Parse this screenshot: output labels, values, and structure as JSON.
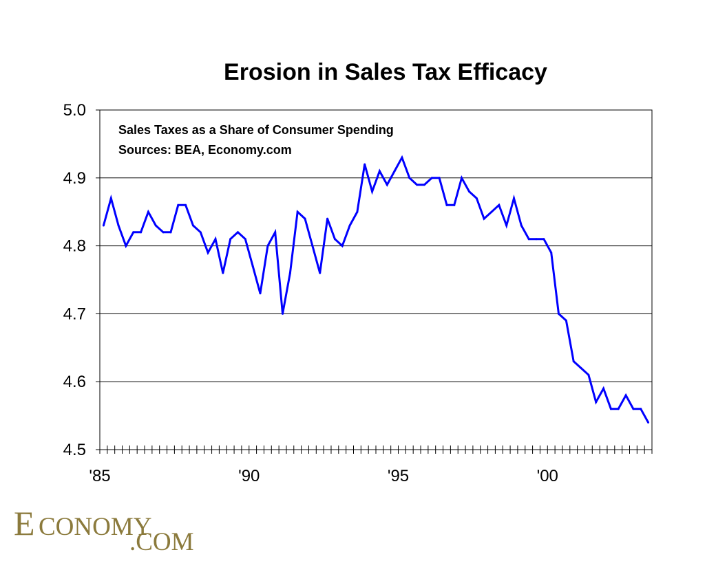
{
  "chart_data": {
    "type": "line",
    "title": "Erosion in Sales Tax Efficacy",
    "annotations": [
      "Sales Taxes as a Share of Consumer Spending",
      "Sources: BEA, Economy.com"
    ],
    "x_tick_labels": [
      "'85",
      "'90",
      "'95",
      "'00"
    ],
    "x_tick_start_years": [
      1985,
      1990,
      1995,
      2000
    ],
    "y_ticks": [
      "5.0",
      "4.9",
      "4.8",
      "4.7",
      "4.6",
      "4.5"
    ],
    "ylim": [
      4.5,
      5.0
    ],
    "x_frequency": "quarterly",
    "x_start": "1985 Q1",
    "grid": "horizontal",
    "series": [
      {
        "color": "#0000ff",
        "values": [
          4.83,
          4.87,
          4.83,
          4.8,
          4.82,
          4.82,
          4.85,
          4.83,
          4.82,
          4.82,
          4.86,
          4.86,
          4.83,
          4.82,
          4.79,
          4.81,
          4.76,
          4.81,
          4.82,
          4.81,
          4.77,
          4.73,
          4.8,
          4.82,
          4.7,
          4.76,
          4.85,
          4.84,
          4.8,
          4.76,
          4.84,
          4.81,
          4.8,
          4.83,
          4.85,
          4.92,
          4.88,
          4.91,
          4.89,
          4.91,
          4.93,
          4.9,
          4.89,
          4.89,
          4.9,
          4.9,
          4.86,
          4.86,
          4.9,
          4.88,
          4.87,
          4.84,
          4.85,
          4.86,
          4.83,
          4.87,
          4.83,
          4.81,
          4.81,
          4.81,
          4.79,
          4.7,
          4.69,
          4.63,
          4.62,
          4.61,
          4.57,
          4.59,
          4.56,
          4.56,
          4.58,
          4.56,
          4.56,
          4.54
        ]
      }
    ]
  },
  "logo": {
    "text_main": "ECONOMY",
    "text_sub": ".COM",
    "color": "#8b7a3c"
  }
}
